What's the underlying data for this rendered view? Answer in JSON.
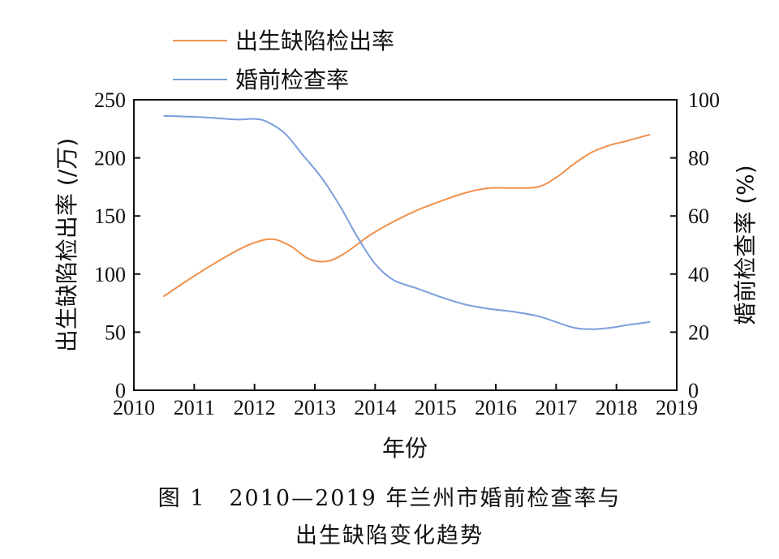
{
  "chart_data": {
    "type": "line",
    "xlabel": "年份",
    "ylabel_left": "出生缺陷检出率 (/万)",
    "ylabel_right": "婚前检查率 (%)",
    "xlim": [
      2010,
      2019
    ],
    "ylim_left": [
      0,
      250
    ],
    "ylim_right": [
      0,
      100
    ],
    "x_ticks": [
      "2010",
      "2011",
      "2012",
      "2013",
      "2014",
      "2015",
      "2016",
      "2017",
      "2018",
      "2019"
    ],
    "y_ticks_left": [
      "0",
      "50",
      "100",
      "150",
      "200",
      "250"
    ],
    "y_ticks_right": [
      "0",
      "20",
      "40",
      "60",
      "80",
      "100"
    ],
    "legend_position": "top-left",
    "grid": false,
    "series": [
      {
        "name": "出生缺陷检出率",
        "axis": "left",
        "color": "#F0914C",
        "x": [
          2010.5,
          2010.9,
          2011.3,
          2011.7,
          2012.0,
          2012.3,
          2012.6,
          2012.9,
          2013.2,
          2013.5,
          2013.9,
          2014.3,
          2014.7,
          2015.1,
          2015.5,
          2015.9,
          2016.3,
          2016.7,
          2017.0,
          2017.3,
          2017.6,
          2017.9,
          2018.2,
          2018.55
        ],
        "values": [
          81,
          95,
          108,
          120,
          127,
          130,
          124,
          113,
          111,
          118,
          133,
          145,
          155,
          163,
          170,
          174,
          174,
          175,
          183,
          195,
          205,
          211,
          215,
          220
        ]
      },
      {
        "name": "婚前检查率",
        "axis": "right",
        "color": "#7B9FDC",
        "x": [
          2010.5,
          2010.9,
          2011.3,
          2011.7,
          2012.0,
          2012.2,
          2012.5,
          2012.8,
          2013.1,
          2013.4,
          2013.7,
          2014.0,
          2014.3,
          2014.7,
          2015.1,
          2015.5,
          2015.9,
          2016.3,
          2016.7,
          2017.0,
          2017.3,
          2017.6,
          2017.9,
          2018.2,
          2018.55
        ],
        "values": [
          94.5,
          94.2,
          93.8,
          93.2,
          93.4,
          92.5,
          88.5,
          81.0,
          73.5,
          64.0,
          53.0,
          43.5,
          38.0,
          35.0,
          32.0,
          29.5,
          28.0,
          27.0,
          25.5,
          23.5,
          21.5,
          21.0,
          21.5,
          22.5,
          23.5
        ]
      }
    ]
  },
  "caption": {
    "line1": "图 1　2010—2019 年兰州市婚前检查率与",
    "line2": "出生缺陷变化趋势"
  }
}
